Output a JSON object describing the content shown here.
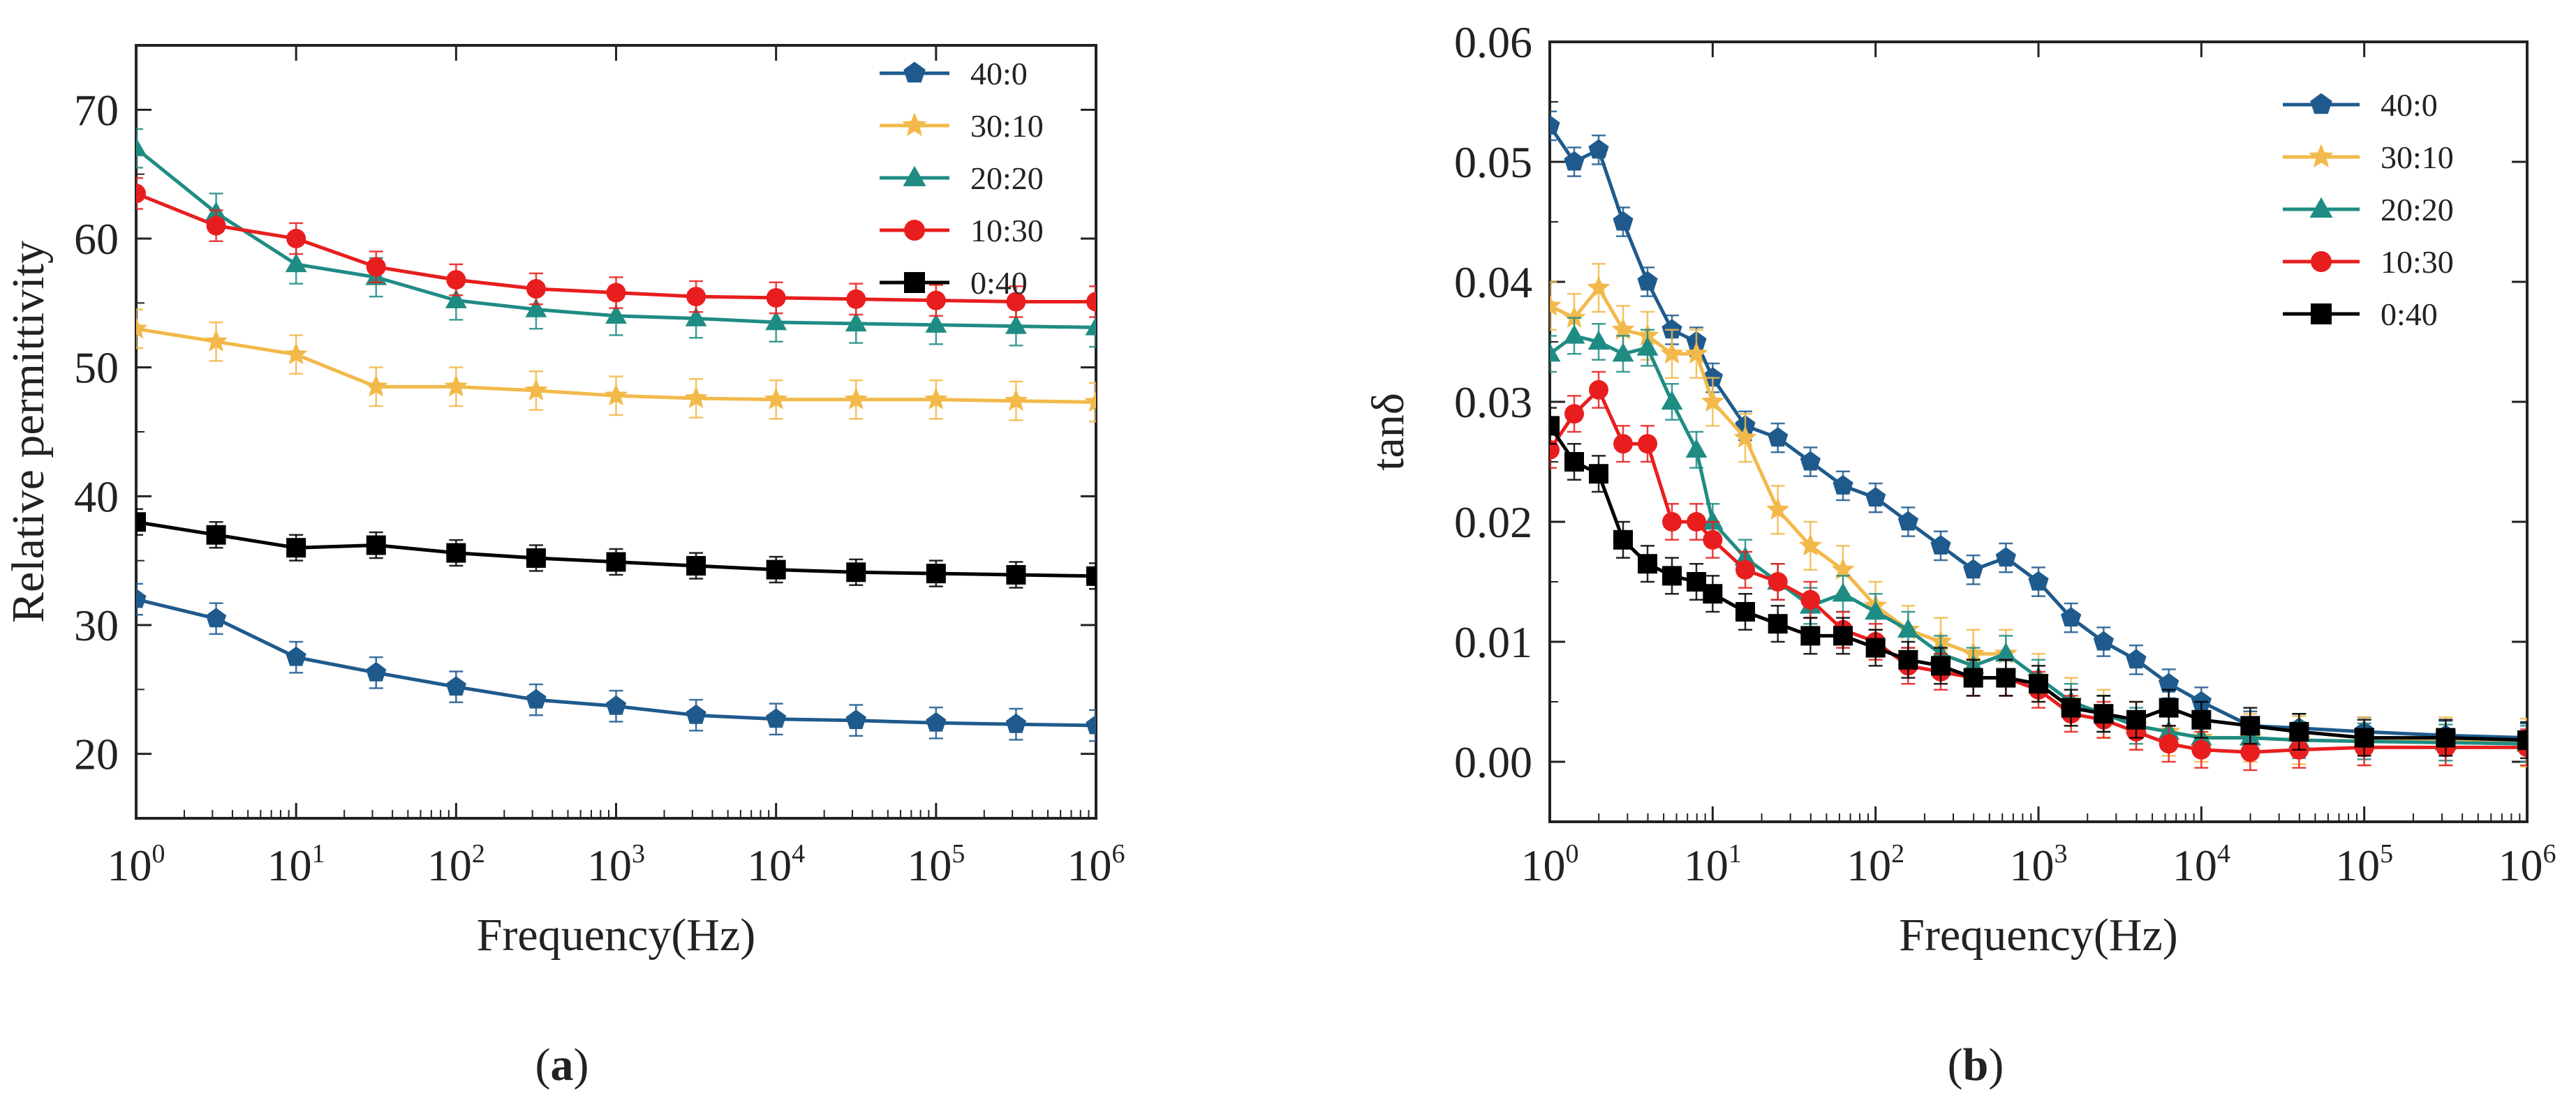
{
  "chart_data": [
    {
      "type": "line",
      "id": "a",
      "caption": {
        "open": "(",
        "letter": "a",
        "close": ")"
      },
      "xlabel": "Frequency(Hz)",
      "ylabel": "Relative permittivity",
      "x_scale": "log",
      "xlim": [
        1,
        1000000
      ],
      "ylim": [
        15,
        75
      ],
      "xticks": [
        {
          "value": 1,
          "base": "10",
          "exp": "0"
        },
        {
          "value": 10,
          "base": "10",
          "exp": "1"
        },
        {
          "value": 100,
          "base": "10",
          "exp": "2"
        },
        {
          "value": 1000,
          "base": "10",
          "exp": "3"
        },
        {
          "value": 10000,
          "base": "10",
          "exp": "4"
        },
        {
          "value": 100000,
          "base": "10",
          "exp": "5"
        },
        {
          "value": 1000000,
          "base": "10",
          "exp": "6"
        }
      ],
      "yticks": [
        {
          "value": 20,
          "label": "20"
        },
        {
          "value": 30,
          "label": "30"
        },
        {
          "value": 40,
          "label": "40"
        },
        {
          "value": 50,
          "label": "50"
        },
        {
          "value": 60,
          "label": "60"
        },
        {
          "value": 70,
          "label": "70"
        }
      ],
      "legend_position": "top-right",
      "series": [
        {
          "name": "40:0",
          "color": "#1f5a8c",
          "marker": "pentagon",
          "error": 1.2,
          "log_x": [
            0,
            0.5,
            1,
            1.5,
            2,
            2.5,
            3,
            3.5,
            4,
            4.5,
            5,
            5.5,
            6
          ],
          "values": [
            32,
            30.5,
            27.5,
            26.3,
            25.2,
            24.2,
            23.7,
            23.0,
            22.7,
            22.6,
            22.4,
            22.3,
            22.2
          ]
        },
        {
          "name": "30:10",
          "color": "#f2b94a",
          "marker": "star",
          "error": 1.5,
          "log_x": [
            0,
            0.5,
            1,
            1.5,
            2,
            2.5,
            3,
            3.5,
            4,
            4.5,
            5,
            5.5,
            6
          ],
          "values": [
            53,
            52,
            51,
            48.5,
            48.5,
            48.2,
            47.8,
            47.6,
            47.5,
            47.5,
            47.5,
            47.4,
            47.3
          ]
        },
        {
          "name": "20:20",
          "color": "#1f8c84",
          "marker": "triangle",
          "error": 1.5,
          "log_x": [
            0,
            0.5,
            1,
            1.5,
            2,
            2.5,
            3,
            3.5,
            4,
            4.5,
            5,
            5.5,
            6
          ],
          "values": [
            67,
            62,
            58,
            57,
            55.2,
            54.5,
            54,
            53.8,
            53.5,
            53.4,
            53.3,
            53.2,
            53.1
          ]
        },
        {
          "name": "10:30",
          "color": "#e81e1e",
          "marker": "circle",
          "error": 1.2,
          "log_x": [
            0,
            0.5,
            1,
            1.5,
            2,
            2.5,
            3,
            3.5,
            4,
            4.5,
            5,
            5.5,
            6
          ],
          "values": [
            63.5,
            61,
            60,
            57.8,
            56.8,
            56.1,
            55.8,
            55.5,
            55.4,
            55.3,
            55.2,
            55.1,
            55.1
          ]
        },
        {
          "name": "0:40",
          "color": "#000000",
          "marker": "square",
          "error": 1.0,
          "log_x": [
            0,
            0.5,
            1,
            1.5,
            2,
            2.5,
            3,
            3.5,
            4,
            4.5,
            5,
            5.5,
            6
          ],
          "values": [
            38,
            37,
            36,
            36.2,
            35.6,
            35.2,
            34.9,
            34.6,
            34.3,
            34.1,
            34.0,
            33.9,
            33.8
          ]
        }
      ]
    },
    {
      "type": "line",
      "id": "b",
      "caption": {
        "open": "(",
        "letter": "b",
        "close": ")"
      },
      "xlabel": "Frequency(Hz)",
      "ylabel": "tanδ",
      "x_scale": "log",
      "xlim": [
        1,
        1000000
      ],
      "ylim": [
        -0.005,
        0.06
      ],
      "xticks": [
        {
          "value": 1,
          "base": "10",
          "exp": "0"
        },
        {
          "value": 10,
          "base": "10",
          "exp": "1"
        },
        {
          "value": 100,
          "base": "10",
          "exp": "2"
        },
        {
          "value": 1000,
          "base": "10",
          "exp": "3"
        },
        {
          "value": 10000,
          "base": "10",
          "exp": "4"
        },
        {
          "value": 100000,
          "base": "10",
          "exp": "5"
        },
        {
          "value": 1000000,
          "base": "10",
          "exp": "6"
        }
      ],
      "yticks": [
        {
          "value": 0.0,
          "label": "0.00"
        },
        {
          "value": 0.01,
          "label": "0.01"
        },
        {
          "value": 0.02,
          "label": "0.02"
        },
        {
          "value": 0.03,
          "label": "0.03"
        },
        {
          "value": 0.04,
          "label": "0.04"
        },
        {
          "value": 0.05,
          "label": "0.05"
        },
        {
          "value": 0.06,
          "label": "0.06"
        }
      ],
      "legend_position": "top-right",
      "series": [
        {
          "name": "40:0",
          "color": "#1f5a8c",
          "marker": "pentagon",
          "error": 0.0012,
          "log_x": [
            0,
            0.15,
            0.3,
            0.45,
            0.6,
            0.75,
            0.9,
            1.0,
            1.2,
            1.4,
            1.6,
            1.8,
            2.0,
            2.2,
            2.4,
            2.6,
            2.8,
            3.0,
            3.2,
            3.4,
            3.6,
            3.8,
            4.0,
            4.3,
            4.6,
            5.0,
            5.5,
            6.0
          ],
          "values": [
            0.053,
            0.05,
            0.051,
            0.045,
            0.04,
            0.036,
            0.035,
            0.032,
            0.028,
            0.027,
            0.025,
            0.023,
            0.022,
            0.02,
            0.018,
            0.016,
            0.017,
            0.015,
            0.012,
            0.01,
            0.0085,
            0.0065,
            0.005,
            0.003,
            0.0028,
            0.0025,
            0.0022,
            0.002
          ]
        },
        {
          "name": "30:10",
          "color": "#f2b94a",
          "marker": "star",
          "error": 0.002,
          "log_x": [
            0,
            0.15,
            0.3,
            0.45,
            0.6,
            0.75,
            0.9,
            1.0,
            1.2,
            1.4,
            1.6,
            1.8,
            2.0,
            2.2,
            2.4,
            2.6,
            2.8,
            3.0,
            3.2,
            3.4,
            3.6,
            3.8,
            4.0,
            4.3,
            4.6,
            5.0,
            5.5,
            6.0
          ],
          "values": [
            0.038,
            0.037,
            0.0395,
            0.036,
            0.0355,
            0.034,
            0.034,
            0.03,
            0.027,
            0.021,
            0.018,
            0.016,
            0.013,
            0.011,
            0.01,
            0.009,
            0.009,
            0.007,
            0.005,
            0.004,
            0.003,
            0.0025,
            0.002,
            0.002,
            0.0018,
            0.0017,
            0.0017,
            0.0016
          ]
        },
        {
          "name": "20:20",
          "color": "#1f8c84",
          "marker": "triangle",
          "error": 0.0015,
          "log_x": [
            0,
            0.15,
            0.3,
            0.45,
            0.6,
            0.75,
            0.9,
            1.0,
            1.2,
            1.4,
            1.6,
            1.8,
            2.0,
            2.2,
            2.4,
            2.6,
            2.8,
            3.0,
            3.2,
            3.4,
            3.6,
            3.8,
            4.0,
            4.3,
            4.6,
            5.0,
            5.5,
            6.0
          ],
          "values": [
            0.034,
            0.0355,
            0.035,
            0.034,
            0.0345,
            0.03,
            0.026,
            0.02,
            0.017,
            0.015,
            0.013,
            0.014,
            0.0125,
            0.011,
            0.009,
            0.008,
            0.009,
            0.007,
            0.005,
            0.004,
            0.003,
            0.0025,
            0.002,
            0.002,
            0.0018,
            0.0017,
            0.0016,
            0.0015
          ]
        },
        {
          "name": "10:30",
          "color": "#e81e1e",
          "marker": "circle",
          "error": 0.0015,
          "log_x": [
            0,
            0.15,
            0.3,
            0.45,
            0.6,
            0.75,
            0.9,
            1.0,
            1.2,
            1.4,
            1.6,
            1.8,
            2.0,
            2.2,
            2.4,
            2.6,
            2.8,
            3.0,
            3.2,
            3.4,
            3.6,
            3.8,
            4.0,
            4.3,
            4.6,
            5.0,
            5.5,
            6.0
          ],
          "values": [
            0.026,
            0.029,
            0.031,
            0.0265,
            0.0265,
            0.02,
            0.02,
            0.0185,
            0.016,
            0.015,
            0.0135,
            0.011,
            0.01,
            0.008,
            0.0075,
            0.007,
            0.007,
            0.006,
            0.004,
            0.0035,
            0.0025,
            0.0015,
            0.001,
            0.0008,
            0.001,
            0.0012,
            0.0012,
            0.0012
          ]
        },
        {
          "name": "0:40",
          "color": "#000000",
          "marker": "square",
          "error": 0.0015,
          "log_x": [
            0,
            0.15,
            0.3,
            0.45,
            0.6,
            0.75,
            0.9,
            1.0,
            1.2,
            1.4,
            1.6,
            1.8,
            2.0,
            2.2,
            2.4,
            2.6,
            2.8,
            3.0,
            3.2,
            3.4,
            3.6,
            3.8,
            4.0,
            4.3,
            4.6,
            5.0,
            5.5,
            6.0
          ],
          "values": [
            0.028,
            0.025,
            0.024,
            0.0185,
            0.0165,
            0.0155,
            0.015,
            0.014,
            0.0125,
            0.0115,
            0.0105,
            0.0105,
            0.0095,
            0.0085,
            0.008,
            0.007,
            0.007,
            0.0065,
            0.0045,
            0.004,
            0.0035,
            0.0045,
            0.0035,
            0.003,
            0.0025,
            0.002,
            0.002,
            0.0018
          ]
        }
      ]
    }
  ]
}
